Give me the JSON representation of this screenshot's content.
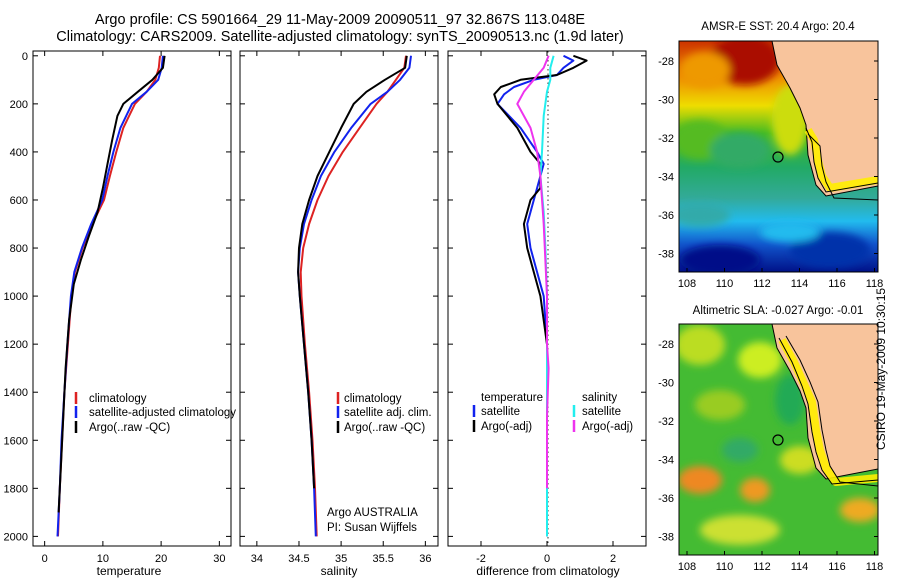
{
  "title": {
    "line1": "Argo profile: CS 5901664_29 11-May-2009 20090511_97 32.867S 113.048E",
    "line2": "Climatology: CARS2009. Satellite-adjusted climatology: synTS_20090513.nc (1.9d later)"
  },
  "colors": {
    "climatology": "#dd2222",
    "satellite": "#1122ee",
    "argo": "#000000",
    "sal_satellite": "#22eeee",
    "sal_argo": "#ee33ee"
  },
  "credit": {
    "line1": "Argo AUSTRALIA",
    "line2": "PI: Susan Wijffels"
  },
  "stamp": "CSIRO 19-May-2009 10:30:15",
  "chart_data": [
    {
      "type": "line",
      "id": "temperature",
      "xlabel": "temperature",
      "ylabel": "",
      "xlim": [
        -2,
        32
      ],
      "ylim": [
        2040,
        -20
      ],
      "y_inverted": true,
      "xticks": [
        0,
        10,
        20,
        30
      ],
      "yticks": [
        0,
        200,
        400,
        600,
        800,
        1000,
        1200,
        1400,
        1600,
        1800,
        2000
      ],
      "legend": [
        "climatology",
        "satellite-adjusted climatology",
        "Argo(..raw -QC)"
      ],
      "legend_position": "lower-right",
      "series": [
        {
          "name": "climatology",
          "color": "#dd2222",
          "points": [
            [
              19.8,
              0
            ],
            [
              19.6,
              50
            ],
            [
              19.0,
              100
            ],
            [
              17.5,
              150
            ],
            [
              15.5,
              200
            ],
            [
              13.5,
              300
            ],
            [
              12.3,
              400
            ],
            [
              11.2,
              500
            ],
            [
              10.2,
              600
            ],
            [
              8.2,
              700
            ],
            [
              6.5,
              800
            ],
            [
              5.2,
              900
            ],
            [
              4.6,
              1000
            ],
            [
              4.0,
              1200
            ],
            [
              3.4,
              1400
            ],
            [
              3.0,
              1600
            ],
            [
              2.6,
              1800
            ],
            [
              2.3,
              2000
            ]
          ]
        },
        {
          "name": "satellite-adjusted climatology",
          "color": "#1122ee",
          "points": [
            [
              20.3,
              0
            ],
            [
              20.1,
              50
            ],
            [
              19.5,
              100
            ],
            [
              17.5,
              150
            ],
            [
              15.0,
              200
            ],
            [
              13.0,
              300
            ],
            [
              11.8,
              400
            ],
            [
              10.8,
              500
            ],
            [
              9.9,
              600
            ],
            [
              8.0,
              700
            ],
            [
              6.4,
              800
            ],
            [
              5.1,
              900
            ],
            [
              4.5,
              1000
            ],
            [
              3.9,
              1200
            ],
            [
              3.4,
              1400
            ],
            [
              2.9,
              1600
            ],
            [
              2.6,
              1800
            ],
            [
              2.2,
              2000
            ]
          ]
        },
        {
          "name": "Argo(..raw -QC)",
          "color": "#000000",
          "points": [
            [
              20.6,
              0
            ],
            [
              20.3,
              50
            ],
            [
              18.5,
              100
            ],
            [
              16.0,
              150
            ],
            [
              13.5,
              200
            ],
            [
              12.5,
              250
            ],
            [
              11.6,
              350
            ],
            [
              10.8,
              450
            ],
            [
              10.0,
              550
            ],
            [
              9.1,
              650
            ],
            [
              7.6,
              750
            ],
            [
              6.2,
              850
            ],
            [
              5.0,
              950
            ],
            [
              4.2,
              1100
            ],
            [
              3.6,
              1300
            ],
            [
              3.2,
              1500
            ],
            [
              2.8,
              1700
            ],
            [
              2.4,
              1900
            ]
          ]
        }
      ]
    },
    {
      "type": "line",
      "id": "salinity",
      "xlabel": "salinity",
      "ylabel": "",
      "xlim": [
        33.8,
        36.15
      ],
      "ylim": [
        2040,
        -20
      ],
      "y_inverted": true,
      "xticks": [
        34,
        34.5,
        35,
        35.5,
        36
      ],
      "legend": [
        "climatology",
        "satellite adj. clim.",
        "Argo(..raw -QC)"
      ],
      "legend_position": "lower-right",
      "series": [
        {
          "name": "climatology",
          "color": "#dd2222",
          "points": [
            [
              35.77,
              0
            ],
            [
              35.75,
              50
            ],
            [
              35.65,
              100
            ],
            [
              35.55,
              150
            ],
            [
              35.42,
              200
            ],
            [
              35.22,
              300
            ],
            [
              35.02,
              400
            ],
            [
              34.85,
              500
            ],
            [
              34.72,
              600
            ],
            [
              34.62,
              700
            ],
            [
              34.55,
              800
            ],
            [
              34.52,
              900
            ],
            [
              34.53,
              1000
            ],
            [
              34.57,
              1200
            ],
            [
              34.62,
              1400
            ],
            [
              34.66,
              1600
            ],
            [
              34.69,
              1800
            ],
            [
              34.71,
              2000
            ]
          ]
        },
        {
          "name": "satellite adj. clim.",
          "color": "#1122ee",
          "points": [
            [
              35.83,
              0
            ],
            [
              35.81,
              50
            ],
            [
              35.7,
              100
            ],
            [
              35.55,
              150
            ],
            [
              35.35,
              200
            ],
            [
              35.12,
              300
            ],
            [
              34.92,
              400
            ],
            [
              34.76,
              500
            ],
            [
              34.65,
              600
            ],
            [
              34.56,
              700
            ],
            [
              34.51,
              800
            ],
            [
              34.49,
              900
            ],
            [
              34.51,
              1000
            ],
            [
              34.56,
              1200
            ],
            [
              34.61,
              1400
            ],
            [
              34.65,
              1600
            ],
            [
              34.68,
              1800
            ],
            [
              34.7,
              2000
            ]
          ]
        },
        {
          "name": "Argo(..raw -QC)",
          "color": "#000000",
          "points": [
            [
              35.78,
              0
            ],
            [
              35.76,
              50
            ],
            [
              35.52,
              100
            ],
            [
              35.3,
              150
            ],
            [
              35.15,
              200
            ],
            [
              35.0,
              300
            ],
            [
              34.86,
              400
            ],
            [
              34.72,
              500
            ],
            [
              34.62,
              600
            ],
            [
              34.54,
              700
            ],
            [
              34.5,
              800
            ],
            [
              34.49,
              900
            ],
            [
              34.51,
              1000
            ],
            [
              34.56,
              1200
            ],
            [
              34.61,
              1400
            ],
            [
              34.65,
              1600
            ],
            [
              34.68,
              1800
            ]
          ]
        }
      ]
    },
    {
      "type": "line",
      "id": "difference",
      "xlabel": "difference from climatology",
      "ylabel": "",
      "xlim": [
        -3,
        3
      ],
      "ylim": [
        2040,
        -20
      ],
      "y_inverted": true,
      "xticks": [
        -2,
        0,
        2
      ],
      "legend_groups": [
        {
          "heading": "temperature",
          "items": [
            "satellite",
            "Argo(-adj)"
          ]
        },
        {
          "heading": "salinity",
          "items": [
            "satellite",
            "Argo(-adj)"
          ]
        }
      ],
      "legend_position": "lower",
      "series": [
        {
          "name": "temperature satellite",
          "color": "#1122ee",
          "points": [
            [
              0.5,
              0
            ],
            [
              0.8,
              20
            ],
            [
              0.5,
              50
            ],
            [
              0.3,
              80
            ],
            [
              -0.4,
              100
            ],
            [
              -1.0,
              130
            ],
            [
              -1.3,
              160
            ],
            [
              -1.5,
              200
            ],
            [
              -0.8,
              300
            ],
            [
              -0.3,
              400
            ],
            [
              -0.1,
              450
            ],
            [
              -0.2,
              500
            ],
            [
              -0.3,
              550
            ],
            [
              -0.4,
              600
            ],
            [
              -0.6,
              700
            ],
            [
              -0.5,
              800
            ],
            [
              -0.3,
              900
            ],
            [
              -0.1,
              1000
            ],
            [
              0,
              1200
            ],
            [
              0,
              1600
            ],
            [
              0,
              2000
            ]
          ]
        },
        {
          "name": "temperature Argo(-adj)",
          "color": "#000000",
          "points": [
            [
              0.8,
              0
            ],
            [
              1.2,
              20
            ],
            [
              0.8,
              50
            ],
            [
              0.3,
              80
            ],
            [
              -0.8,
              100
            ],
            [
              -1.4,
              130
            ],
            [
              -1.6,
              160
            ],
            [
              -1.5,
              200
            ],
            [
              -0.9,
              300
            ],
            [
              -0.5,
              400
            ],
            [
              -0.2,
              450
            ],
            [
              -0.2,
              500
            ],
            [
              -0.2,
              550
            ],
            [
              -0.5,
              600
            ],
            [
              -0.7,
              700
            ],
            [
              -0.6,
              800
            ],
            [
              -0.4,
              900
            ],
            [
              -0.2,
              1000
            ],
            [
              0,
              1200
            ],
            [
              0,
              1600
            ],
            [
              0,
              1900
            ]
          ]
        },
        {
          "name": "salinity satellite",
          "color": "#22eeee",
          "points": [
            [
              0.2,
              0
            ],
            [
              0.1,
              50
            ],
            [
              0.1,
              100
            ],
            [
              0,
              150
            ],
            [
              -0.1,
              250
            ],
            [
              -0.15,
              400
            ],
            [
              -0.2,
              500
            ],
            [
              -0.1,
              650
            ],
            [
              -0.05,
              800
            ],
            [
              0,
              1000
            ],
            [
              0,
              1300
            ],
            [
              0,
              1600
            ],
            [
              0,
              2000
            ]
          ]
        },
        {
          "name": "salinity Argo(-adj)",
          "color": "#ee33ee",
          "points": [
            [
              0.05,
              0
            ],
            [
              -0.1,
              50
            ],
            [
              -0.4,
              100
            ],
            [
              -0.7,
              150
            ],
            [
              -0.9,
              200
            ],
            [
              -0.5,
              300
            ],
            [
              -0.3,
              400
            ],
            [
              -0.2,
              500
            ],
            [
              -0.1,
              700
            ],
            [
              0,
              1000
            ],
            [
              0,
              1200
            ],
            [
              0.05,
              1300
            ],
            [
              0,
              1500
            ],
            [
              0,
              1800
            ]
          ]
        }
      ]
    }
  ],
  "maps": [
    {
      "id": "sst-map",
      "title": "AMSR-E SST: 20.4  Argo: 20.4",
      "xticks": [
        "108",
        "110",
        "112",
        "114",
        "116",
        "118"
      ],
      "yticks": [
        "-28",
        "-30",
        "-32",
        "-34",
        "-36",
        "-38"
      ]
    },
    {
      "id": "sla-map",
      "title": "Altimetric SLA: -0.027  Argo: -0.01",
      "xticks": [
        "108",
        "110",
        "112",
        "114",
        "116",
        "118"
      ],
      "yticks": [
        "-28",
        "-30",
        "-32",
        "-34",
        "-36",
        "-38"
      ]
    }
  ]
}
